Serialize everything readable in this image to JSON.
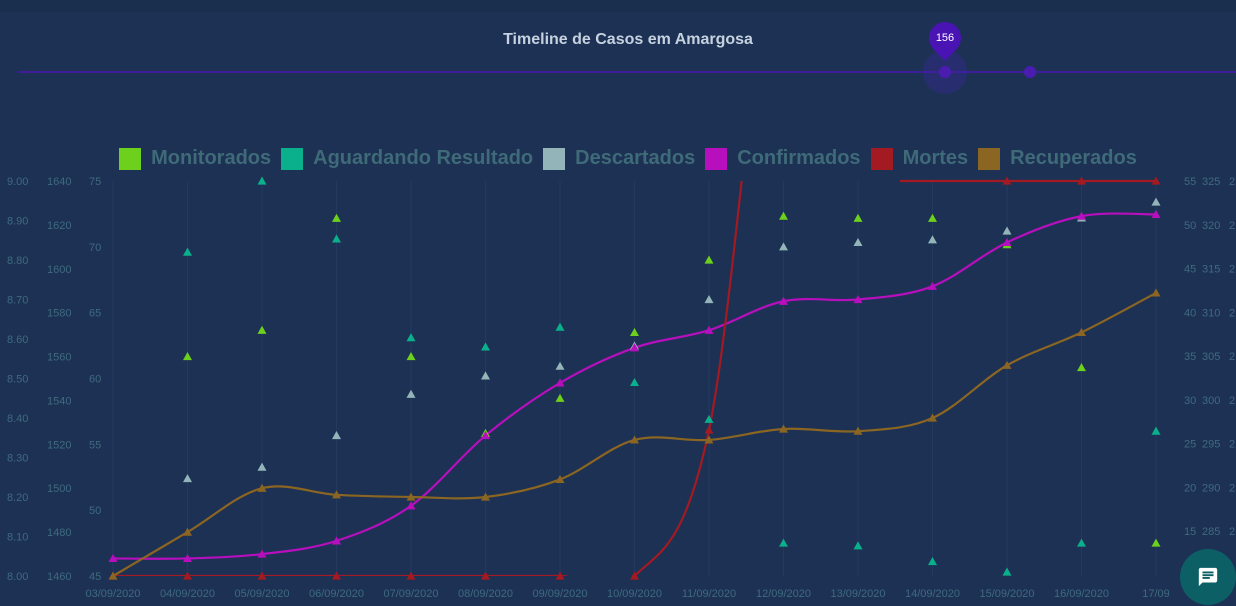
{
  "title": "Timeline de Casos em Amargosa",
  "timeline": {
    "value": "156"
  },
  "legend": [
    {
      "label": "Monitorados",
      "color": "#6dd01c"
    },
    {
      "label": "Aguardando Resultado",
      "color": "#0ab08c"
    },
    {
      "label": "Descartados",
      "color": "#93b5b9"
    },
    {
      "label": "Confirmados",
      "color": "#b70fbd"
    },
    {
      "label": "Mortes",
      "color": "#a31a22"
    },
    {
      "label": "Recuperados",
      "color": "#8b6522"
    }
  ],
  "chart_data": {
    "type": "line",
    "title": "Timeline de Casos em Amargosa",
    "x_ticks": [
      "03/09/2020",
      "04/09/2020",
      "05/09/2020",
      "06/09/2020",
      "07/09/2020",
      "08/09/2020",
      "09/09/2020",
      "10/09/2020",
      "11/09/2020",
      "12/09/2020",
      "13/09/2020",
      "14/09/2020",
      "15/09/2020",
      "16/09/2020",
      "17/09"
    ],
    "axes": {
      "a": {
        "ticks": [
          "9.00",
          "8.90",
          "8.80",
          "8.70",
          "8.60",
          "8.50",
          "8.40",
          "8.30",
          "8.20",
          "8.10",
          "8.00"
        ],
        "min": 8.0,
        "max": 9.0
      },
      "b": {
        "ticks": [
          "1640",
          "1620",
          "1600",
          "1580",
          "1560",
          "1540",
          "1520",
          "1500",
          "1480",
          "1460"
        ],
        "min": 1460,
        "max": 1640
      },
      "c": {
        "ticks": [
          "75",
          "70",
          "65",
          "60",
          "55",
          "50",
          "45"
        ],
        "min": 45,
        "max": 75
      },
      "d": {
        "ticks": [
          "55",
          "50",
          "45",
          "40",
          "35",
          "30",
          "25",
          "20",
          "15"
        ],
        "min": 10,
        "max": 55
      },
      "e": {
        "ticks": [
          "325",
          "320",
          "315",
          "310",
          "305",
          "300",
          "295",
          "290",
          "285"
        ],
        "min": 280,
        "max": 325
      },
      "f": {
        "ticks": [
          "2",
          "2",
          "2",
          "2",
          "2",
          "2",
          "2",
          "2",
          "2"
        ]
      }
    },
    "series": [
      {
        "name": "Monitorados",
        "style": "markers",
        "color": "#6dd01c",
        "axis": "b",
        "values": [
          null,
          1560,
          1572,
          1623,
          1560,
          1525,
          1541,
          1571,
          1604,
          1624,
          1623,
          1623,
          1611,
          1555,
          1475
        ]
      },
      {
        "name": "Aguardando Resultado",
        "style": "markers",
        "color": "#0ab08c",
        "axis": "c",
        "values": [
          null,
          69.6,
          75.0,
          70.6,
          63.1,
          62.4,
          63.9,
          59.7,
          56.9,
          47.5,
          47.3,
          46.1,
          45.3,
          47.5,
          56.0
        ]
      },
      {
        "name": "Descartados",
        "style": "markers",
        "color": "#93b5b9",
        "axis": "d",
        "values": [
          null,
          21.1,
          22.4,
          26.0,
          30.7,
          32.8,
          33.9,
          36.2,
          41.5,
          47.5,
          48.0,
          48.3,
          49.3,
          50.8,
          52.6
        ]
      },
      {
        "name": "Confirmados",
        "style": "line",
        "color": "#b70fbd",
        "axis": "e",
        "values": [
          282.0,
          282.0,
          282.5,
          284.0,
          288.0,
          296.0,
          302.0,
          306.0,
          308.0,
          311.3,
          311.5,
          313.0,
          318.0,
          321.0,
          321.2
        ]
      },
      {
        "name": "Mortes",
        "style": "line",
        "color": "#a31a22",
        "axis": "a",
        "values": [
          8.0,
          8.0,
          8.0,
          8.0,
          8.0,
          8.0,
          8.0,
          8.0,
          8.37,
          9.8,
          9.8,
          9.8,
          9.8,
          9.8,
          9.8
        ]
      },
      {
        "name": "Recuperados",
        "style": "line",
        "color": "#8b6522",
        "axis": "b",
        "values": [
          1460,
          1480,
          1500,
          1497,
          1496,
          1496,
          1504,
          1522,
          1522,
          1527,
          1526,
          1532,
          1556,
          1571,
          1589
        ]
      }
    ]
  }
}
